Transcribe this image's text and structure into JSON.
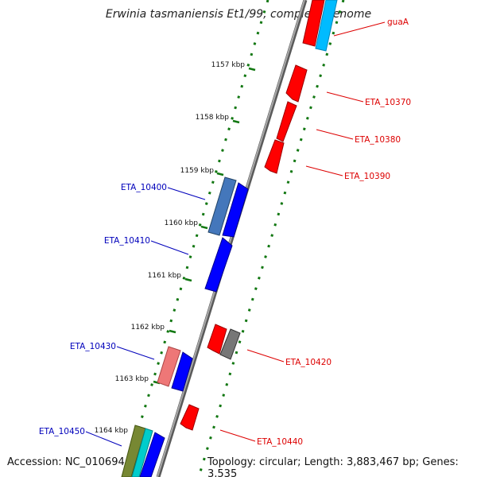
{
  "title": "Erwinia tasmaniensis Et1/99, complete genome",
  "accession": "Accession: NC_010694",
  "topology": "Topology: circular; Length: 3,883,467 bp; Genes: 3,535",
  "colors": {
    "forward_label": "#0000bb",
    "reverse_label": "#dd0000",
    "backbone": "#808080",
    "ticks": "#117711"
  },
  "kbp_ticks": [
    "1157 kbp",
    "1158 kbp",
    "1159 kbp",
    "1160 kbp",
    "1161 kbp",
    "1162 kbp",
    "1163 kbp",
    "1164 kbp"
  ],
  "gene_labels": {
    "guaA": "guaA",
    "eta_10370": "ETA_10370",
    "eta_10380": "ETA_10380",
    "eta_10390": "ETA_10390",
    "eta_10400": "ETA_10400",
    "eta_10410": "ETA_10410",
    "eta_10420": "ETA_10420",
    "eta_10430": "ETA_10430",
    "eta_10440": "ETA_10440",
    "eta_10450": "ETA_10450"
  }
}
